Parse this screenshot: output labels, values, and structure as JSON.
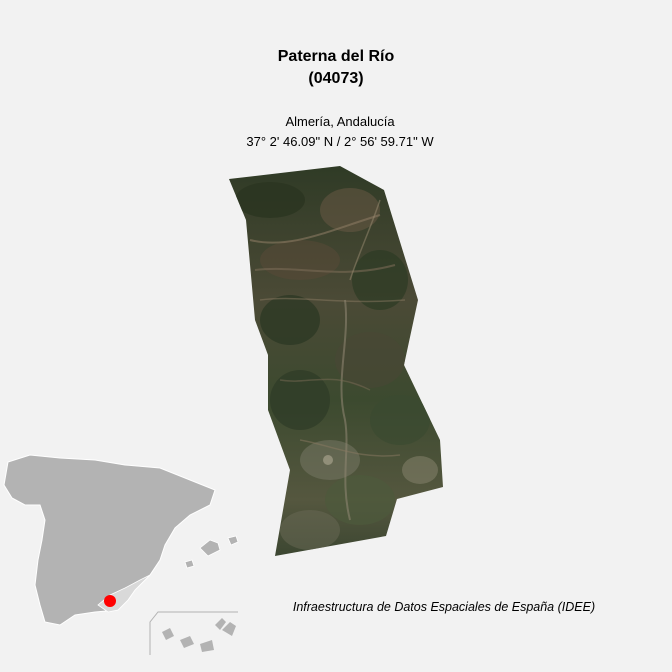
{
  "municipality": {
    "name": "Paterna del Río",
    "code": "(04073)",
    "region": "Almería, Andalucía",
    "coordinates": "37° 2' 46.09\" N / 2° 56' 59.71\" W"
  },
  "credit": "Infraestructura de Datos Espaciales de España (IDEE)",
  "colors": {
    "background": "#f2f2f2",
    "inset_land": "#b3b3b3",
    "inset_border": "#ffffff",
    "province_highlight": "#d9d9d9",
    "location_marker": "#ff0000",
    "imagery_base": "#3a4a2e"
  },
  "inset_map": {
    "marker": "location-dot"
  }
}
